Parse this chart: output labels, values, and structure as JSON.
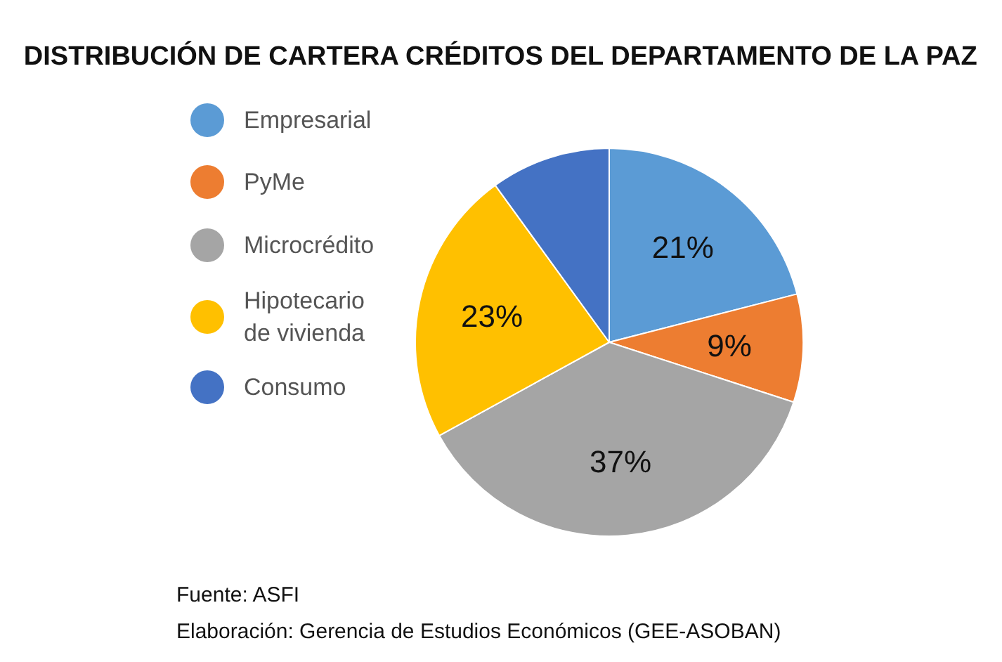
{
  "chart_data": {
    "type": "pie",
    "title": "DISTRIBUCIÓN DE CARTERA CRÉDITOS DEL DEPARTAMENTO DE LA PAZ",
    "categories": [
      "Empresarial",
      "PyMe",
      "Microcrédito",
      "Hipotecario\nde vivienda",
      "Consumo"
    ],
    "values": [
      21,
      9,
      37,
      23,
      10
    ],
    "colors": [
      "#5b9bd5",
      "#ed7d31",
      "#a5a5a5",
      "#ffc000",
      "#4472c4"
    ],
    "value_labels": [
      "21%",
      "9%",
      "37%",
      "23%",
      null
    ],
    "legend": "left",
    "annotations": [
      "Fuente: ASFI",
      "Elaboración: Gerencia de Estudios Económicos (GEE-ASOBAN)"
    ]
  }
}
